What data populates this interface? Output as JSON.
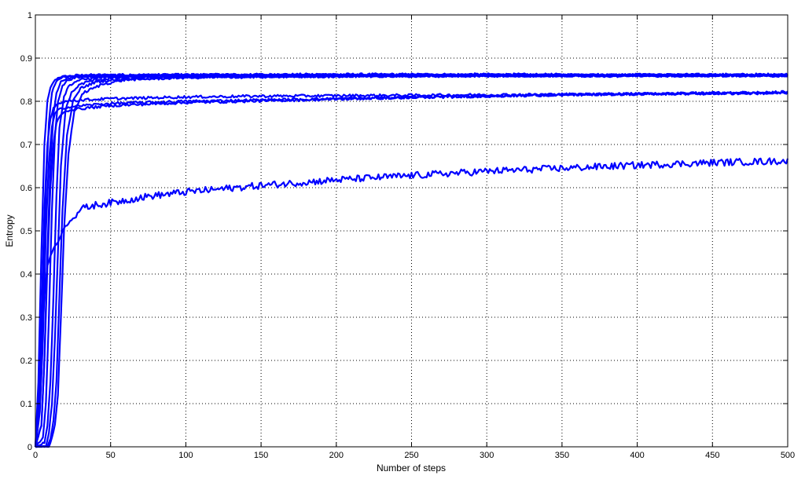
{
  "chart_data": {
    "type": "line",
    "title": "",
    "xlabel": "Number of steps",
    "ylabel": "Entropy",
    "xlim": [
      0,
      500
    ],
    "ylim": [
      0,
      1
    ],
    "xticks": [
      0,
      50,
      100,
      150,
      200,
      250,
      300,
      350,
      400,
      450,
      500
    ],
    "yticks": [
      0,
      0.1,
      0.2,
      0.3,
      0.4,
      0.5,
      0.6,
      0.7,
      0.8,
      0.9,
      1
    ],
    "ytick_labels": [
      "0",
      "0.1",
      "0.2",
      "0.3",
      "0.4",
      "0.5",
      "0.6",
      "0.7",
      "0.8",
      "0.9",
      "1"
    ],
    "grid": true,
    "grid_style": "dotted",
    "line_color": "#0000ff",
    "series": [
      {
        "x": [
          0,
          2,
          4,
          6,
          8,
          10,
          12,
          14,
          16,
          20,
          30,
          50,
          100,
          200,
          300,
          400,
          500
        ],
        "y": [
          0,
          0.15,
          0.45,
          0.7,
          0.8,
          0.83,
          0.845,
          0.852,
          0.856,
          0.858,
          0.86,
          0.861,
          0.861,
          0.862,
          0.862,
          0.861,
          0.862
        ]
      },
      {
        "x": [
          0,
          3,
          5,
          7,
          9,
          11,
          13,
          15,
          18,
          22,
          30,
          50,
          100,
          200,
          300,
          400,
          500
        ],
        "y": [
          0,
          0.1,
          0.35,
          0.6,
          0.75,
          0.82,
          0.84,
          0.85,
          0.855,
          0.858,
          0.859,
          0.86,
          0.861,
          0.861,
          0.86,
          0.861,
          0.86
        ]
      },
      {
        "x": [
          0,
          4,
          6,
          8,
          10,
          12,
          14,
          17,
          20,
          25,
          35,
          50,
          100,
          200,
          300,
          400,
          500
        ],
        "y": [
          0,
          0.05,
          0.2,
          0.45,
          0.65,
          0.77,
          0.82,
          0.845,
          0.852,
          0.856,
          0.858,
          0.859,
          0.86,
          0.861,
          0.86,
          0.86,
          0.861
        ]
      },
      {
        "x": [
          0,
          5,
          7,
          9,
          11,
          13,
          15,
          18,
          21,
          26,
          35,
          50,
          100,
          200,
          300,
          400,
          500
        ],
        "y": [
          0,
          0.02,
          0.1,
          0.3,
          0.55,
          0.72,
          0.8,
          0.835,
          0.848,
          0.854,
          0.857,
          0.858,
          0.86,
          0.86,
          0.861,
          0.86,
          0.86
        ]
      },
      {
        "x": [
          0,
          6,
          8,
          10,
          12,
          14,
          16,
          19,
          22,
          28,
          40,
          60,
          100,
          200,
          300,
          400,
          500
        ],
        "y": [
          0,
          0.01,
          0.05,
          0.15,
          0.35,
          0.58,
          0.74,
          0.81,
          0.835,
          0.848,
          0.855,
          0.857,
          0.858,
          0.859,
          0.86,
          0.86,
          0.859
        ]
      },
      {
        "x": [
          0,
          7,
          9,
          11,
          13,
          15,
          17,
          20,
          24,
          30,
          40,
          60,
          100,
          200,
          300,
          400,
          500
        ],
        "y": [
          0,
          0.0,
          0.03,
          0.1,
          0.25,
          0.45,
          0.65,
          0.78,
          0.82,
          0.84,
          0.85,
          0.855,
          0.858,
          0.859,
          0.86,
          0.86,
          0.86
        ]
      },
      {
        "x": [
          0,
          8,
          10,
          12,
          14,
          16,
          18,
          21,
          25,
          30,
          40,
          60,
          100,
          200,
          300,
          400,
          500
        ],
        "y": [
          0,
          0.0,
          0.02,
          0.06,
          0.15,
          0.35,
          0.55,
          0.72,
          0.8,
          0.83,
          0.845,
          0.852,
          0.856,
          0.858,
          0.859,
          0.86,
          0.86
        ]
      },
      {
        "x": [
          0,
          9,
          11,
          13,
          15,
          17,
          19,
          22,
          26,
          32,
          45,
          60,
          100,
          200,
          300,
          400,
          500
        ],
        "y": [
          0,
          0.0,
          0.02,
          0.05,
          0.12,
          0.3,
          0.5,
          0.68,
          0.78,
          0.82,
          0.84,
          0.85,
          0.855,
          0.858,
          0.859,
          0.859,
          0.86
        ]
      },
      {
        "x": [
          0,
          2,
          4,
          6,
          8,
          10,
          12,
          15,
          20,
          30,
          50,
          100,
          150,
          200,
          250,
          300,
          350,
          400,
          450,
          500
        ],
        "y": [
          0,
          0.1,
          0.3,
          0.55,
          0.7,
          0.76,
          0.785,
          0.795,
          0.8,
          0.803,
          0.806,
          0.81,
          0.812,
          0.813,
          0.814,
          0.815,
          0.816,
          0.817,
          0.818,
          0.819
        ]
      },
      {
        "x": [
          0,
          3,
          5,
          7,
          9,
          11,
          13,
          16,
          20,
          30,
          50,
          100,
          150,
          200,
          250,
          300,
          350,
          400,
          450,
          500
        ],
        "y": [
          0,
          0.08,
          0.25,
          0.5,
          0.66,
          0.74,
          0.772,
          0.782,
          0.785,
          0.79,
          0.795,
          0.8,
          0.803,
          0.806,
          0.809,
          0.812,
          0.815,
          0.817,
          0.819,
          0.82
        ]
      },
      {
        "x": [
          0,
          4,
          6,
          8,
          10,
          12,
          14,
          17,
          21,
          30,
          50,
          100,
          150,
          200,
          250,
          300,
          350,
          400,
          450,
          500
        ],
        "y": [
          0,
          0.05,
          0.2,
          0.42,
          0.6,
          0.7,
          0.75,
          0.77,
          0.778,
          0.783,
          0.79,
          0.797,
          0.801,
          0.805,
          0.809,
          0.812,
          0.815,
          0.817,
          0.819,
          0.821
        ]
      },
      {
        "x": [
          0,
          2,
          4,
          6,
          8,
          10,
          12,
          14,
          16,
          18,
          20,
          25,
          30,
          40,
          50,
          75,
          100,
          150,
          200,
          250,
          300,
          350,
          400,
          450,
          500
        ],
        "y": [
          0,
          0.08,
          0.22,
          0.35,
          0.42,
          0.44,
          0.46,
          0.47,
          0.48,
          0.5,
          0.51,
          0.53,
          0.55,
          0.56,
          0.565,
          0.58,
          0.59,
          0.605,
          0.618,
          0.628,
          0.638,
          0.645,
          0.652,
          0.658,
          0.662
        ]
      }
    ]
  }
}
